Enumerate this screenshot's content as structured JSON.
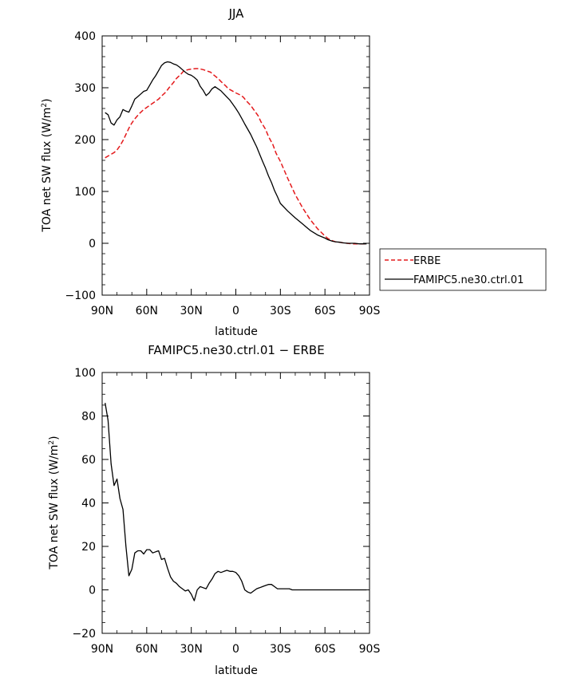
{
  "chart_data": [
    {
      "type": "line",
      "title": "JJA",
      "xlabel": "latitude",
      "ylabel_main": "TOA net SW flux (W/m",
      "ylabel_sup": "2",
      "ylabel_close": ")",
      "xlim": [
        90,
        -90
      ],
      "ylim": [
        -100,
        400
      ],
      "yticks": [
        400,
        300,
        200,
        100,
        0,
        -100
      ],
      "ytick_labels": [
        "400",
        "300",
        "200",
        "100",
        "0",
        "−100"
      ],
      "xticks": [
        90,
        60,
        30,
        0,
        -30,
        -60,
        -90
      ],
      "xtick_labels": [
        "90N",
        "60N",
        "30N",
        "0",
        "30S",
        "60S",
        "90S"
      ],
      "legend_position": "right",
      "series": [
        {
          "name": "ERBE",
          "color": "#e41a1c",
          "dash": "dashed",
          "x": [
            88,
            85,
            82,
            80,
            78,
            76,
            74,
            72,
            70,
            68,
            65,
            62,
            60,
            57,
            55,
            52,
            50,
            47,
            45,
            42,
            40,
            37,
            35,
            32,
            30,
            27,
            25,
            22,
            20,
            17,
            15,
            12,
            10,
            7,
            5,
            3,
            0,
            -3,
            -5,
            -7,
            -10,
            -12,
            -15,
            -17,
            -20,
            -22,
            -25,
            -27,
            -30,
            -35,
            -40,
            -45,
            -50,
            -55,
            -60,
            -62,
            -65,
            -67,
            -70,
            -72,
            -75,
            -78,
            -80,
            -83,
            -85,
            -88
          ],
          "y": [
            165,
            170,
            175,
            180,
            188,
            198,
            210,
            222,
            232,
            240,
            250,
            258,
            262,
            268,
            272,
            278,
            284,
            292,
            300,
            310,
            318,
            326,
            333,
            335,
            336,
            337,
            337,
            335,
            333,
            330,
            325,
            318,
            312,
            304,
            298,
            295,
            290,
            286,
            282,
            275,
            266,
            258,
            246,
            234,
            220,
            206,
            190,
            174,
            158,
            125,
            94,
            68,
            46,
            28,
            14,
            9,
            5,
            3,
            2,
            1,
            0,
            -1,
            -1,
            -1,
            -1,
            -1
          ]
        },
        {
          "name": "FAMIPC5.ne30.ctrl.01",
          "color": "#000000",
          "dash": "solid",
          "x": [
            88,
            86,
            84,
            82,
            80,
            78,
            76,
            74,
            72,
            70,
            68,
            66,
            64,
            62,
            60,
            58,
            56,
            54,
            52,
            50,
            48,
            46,
            44,
            42,
            40,
            38,
            36,
            34,
            32,
            30,
            28,
            26,
            24,
            22,
            20,
            18,
            16,
            14,
            12,
            10,
            8,
            6,
            4,
            2,
            0,
            -2,
            -4,
            -6,
            -8,
            -10,
            -12,
            -14,
            -16,
            -18,
            -20,
            -22,
            -24,
            -26,
            -28,
            -30,
            -35,
            -40,
            -45,
            -50,
            -55,
            -60,
            -62,
            -65,
            -67,
            -70,
            -72,
            -75,
            -78,
            -80,
            -83,
            -85,
            -88
          ],
          "y": [
            252,
            248,
            232,
            228,
            238,
            244,
            258,
            255,
            253,
            265,
            278,
            283,
            288,
            293,
            295,
            305,
            315,
            323,
            333,
            343,
            348,
            350,
            349,
            346,
            344,
            340,
            335,
            330,
            326,
            324,
            320,
            315,
            303,
            295,
            285,
            290,
            298,
            302,
            298,
            294,
            288,
            282,
            276,
            268,
            260,
            251,
            241,
            230,
            220,
            210,
            198,
            186,
            172,
            158,
            145,
            130,
            117,
            102,
            90,
            77,
            62,
            49,
            37,
            25,
            16,
            10,
            7,
            4,
            3,
            2,
            1,
            0,
            0,
            0,
            -1,
            -1,
            -1
          ]
        }
      ]
    },
    {
      "type": "line",
      "title": "FAMIPC5.ne30.ctrl.01 − ERBE",
      "xlabel": "latitude",
      "ylabel_main": "TOA net SW flux (W/m",
      "ylabel_sup": "2",
      "ylabel_close": ")",
      "xlim": [
        90,
        -90
      ],
      "ylim": [
        -20,
        100
      ],
      "yticks": [
        100,
        80,
        60,
        40,
        20,
        0,
        -20
      ],
      "ytick_labels": [
        "100",
        "80",
        "60",
        "40",
        "20",
        "0",
        "−20"
      ],
      "xticks": [
        90,
        60,
        30,
        0,
        -30,
        -60,
        -90
      ],
      "xtick_labels": [
        "90N",
        "60N",
        "30N",
        "0",
        "30S",
        "60S",
        "90S"
      ],
      "series": [
        {
          "name": "",
          "color": "#000000",
          "dash": "solid",
          "x": [
            88,
            86,
            84,
            82,
            80,
            78,
            76,
            74,
            72,
            70,
            68,
            66,
            64,
            62,
            60,
            58,
            56,
            54,
            52,
            50,
            48,
            46,
            44,
            42,
            40,
            38,
            36,
            34,
            32,
            30,
            28,
            26,
            24,
            22,
            20,
            18,
            16,
            14,
            12,
            10,
            8,
            6,
            4,
            2,
            0,
            -2,
            -4,
            -6,
            -8,
            -10,
            -12,
            -14,
            -16,
            -18,
            -20,
            -22,
            -24,
            -26,
            -28,
            -30,
            -32,
            -34,
            -36,
            -38,
            -40,
            -42,
            -44,
            -46,
            -48,
            -50,
            -52,
            -54,
            -56,
            -58,
            -60,
            -62,
            -64,
            -66,
            -68,
            -70,
            -72,
            -74,
            -76,
            -78,
            -80,
            -82,
            -84,
            -86,
            -88
          ],
          "y": [
            86,
            78,
            58,
            48,
            51,
            42,
            37,
            20,
            6.5,
            9.5,
            17,
            18,
            18,
            16.5,
            18.5,
            18.5,
            17,
            17.5,
            18,
            14,
            14.5,
            10,
            6,
            4,
            3,
            1.5,
            0.5,
            -0.5,
            0,
            -2,
            -5,
            0,
            1.5,
            1,
            0.5,
            3,
            5,
            7.5,
            8.5,
            8,
            8.5,
            9,
            8.5,
            8.5,
            8,
            6.5,
            4,
            0,
            -1,
            -1.5,
            -0.5,
            0.5,
            1,
            1.5,
            2,
            2.5,
            2.5,
            1.5,
            0.5,
            0.5,
            0.5,
            0.5,
            0.5,
            0,
            0,
            0,
            0,
            0,
            0,
            0,
            0,
            0,
            0,
            0,
            0,
            0,
            0,
            0,
            0,
            0,
            0,
            0,
            0,
            0,
            0,
            0,
            0,
            0,
            0
          ]
        }
      ]
    }
  ]
}
